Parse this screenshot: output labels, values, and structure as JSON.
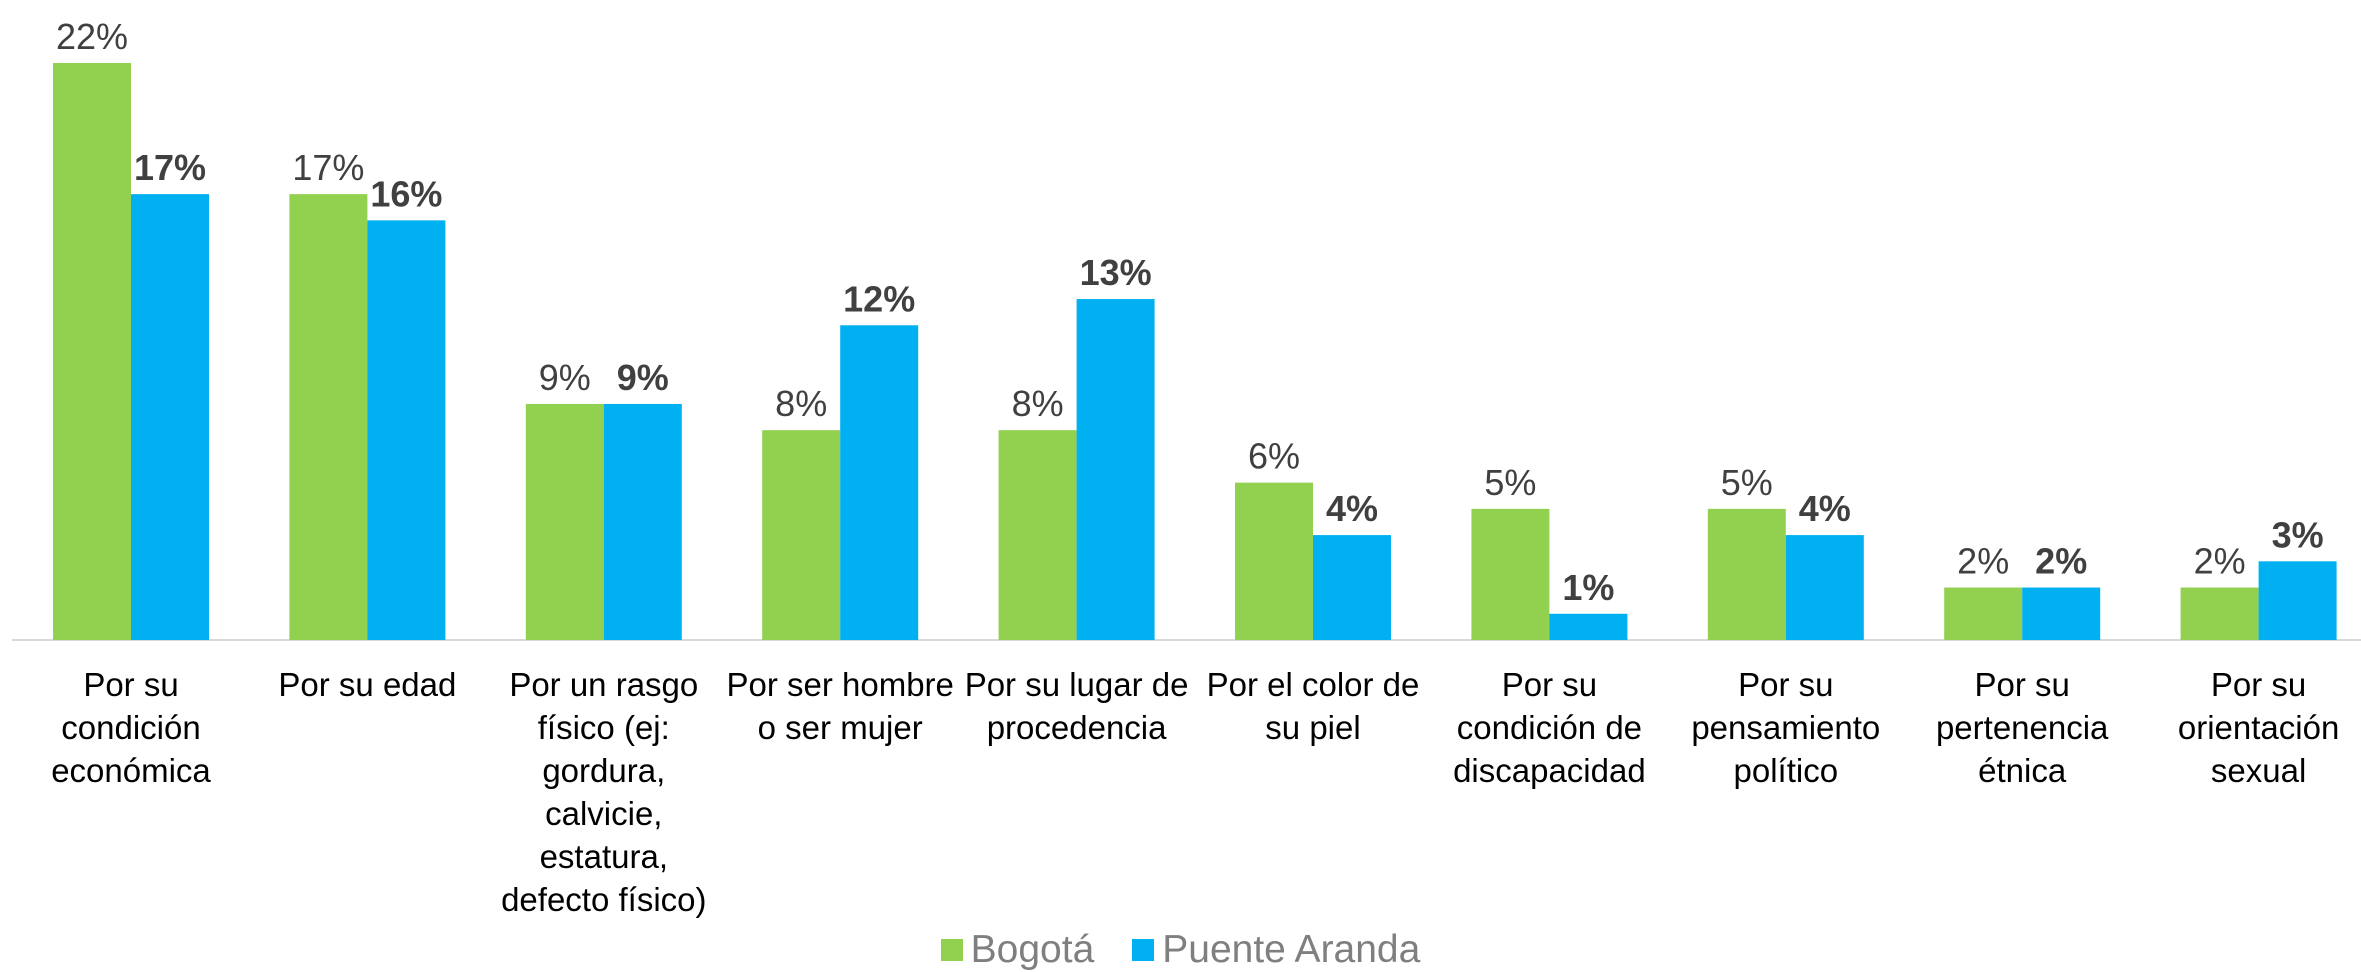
{
  "chart_data": {
    "type": "bar",
    "categories": [
      "Por su condición económica",
      "Por su edad",
      "Por un rasgo físico (ej: gordura, calvicie, estatura, defecto físico)",
      "Por ser hombre o ser mujer",
      "Por su lugar de procedencia",
      "Por el color de su piel",
      "Por su condición de discapacidad",
      "Por su pensamiento político",
      "Por su pertenencia étnica",
      "Por su orientación sexual"
    ],
    "series": [
      {
        "name": "Bogotá",
        "color": "#92d050",
        "values": [
          22,
          17,
          9,
          8,
          8,
          6,
          5,
          5,
          2,
          2
        ],
        "value_labels": [
          "22%",
          "17%",
          "9%",
          "8%",
          "8%",
          "6%",
          "5%",
          "5%",
          "2%",
          "2%"
        ]
      },
      {
        "name": "Puente Aranda",
        "color": "#00b0f0",
        "values": [
          17,
          16,
          9,
          12,
          13,
          4,
          1,
          4,
          2,
          3
        ],
        "value_labels": [
          "17%",
          "16%",
          "9%",
          "12%",
          "13%",
          "4%",
          "1%",
          "4%",
          "2%",
          "3%"
        ]
      }
    ]
  }
}
